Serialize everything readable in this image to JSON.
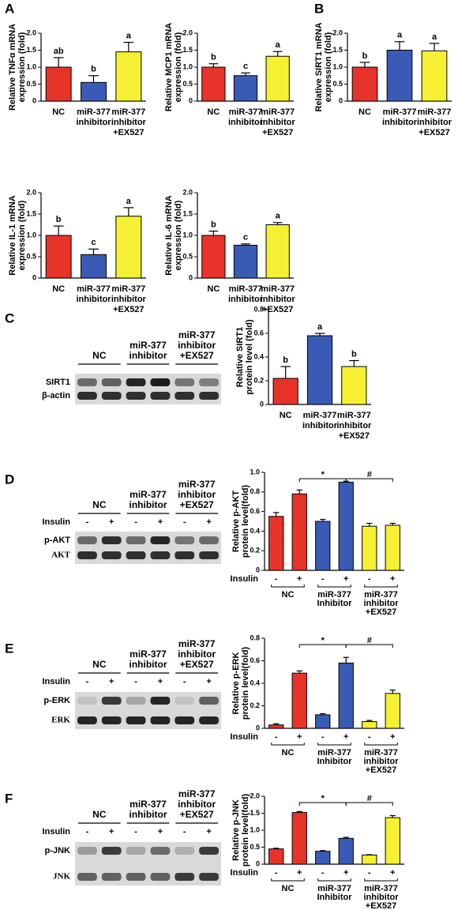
{
  "panel_labels": [
    "A",
    "B",
    "C",
    "D",
    "E",
    "F"
  ],
  "chart_data": [
    {
      "type": "bar",
      "ylabel": [
        "Relative TNFα mRNA",
        "expression (fold)"
      ],
      "categories": [
        [
          "NC"
        ],
        [
          "miR-377",
          "inhibitor"
        ],
        [
          "miR-377",
          "inhibitor",
          "+EX527"
        ]
      ],
      "values": [
        1.0,
        0.55,
        1.45
      ],
      "errors": [
        0.28,
        0.2,
        0.28
      ],
      "letters": [
        "ab",
        "b",
        "a"
      ],
      "colors": [
        "#e8332a",
        "#3a5bb5",
        "#f5f032"
      ],
      "ylim": [
        0,
        2
      ],
      "yticks": [
        0,
        0.5,
        {
          "value": 1,
          "label": "1.0"
        },
        1.5,
        {
          "value": 2,
          "label": "2.0"
        }
      ]
    },
    {
      "type": "bar",
      "ylabel": [
        "Relative MCP1 mRNA",
        "expression (fold)"
      ],
      "categories": [
        [
          "NC"
        ],
        [
          "miR-377",
          "inhibitor"
        ],
        [
          "miR-377",
          "inhibitor",
          "+EX527"
        ]
      ],
      "values": [
        1.0,
        0.75,
        1.32
      ],
      "errors": [
        0.1,
        0.08,
        0.14
      ],
      "letters": [
        "b",
        "c",
        "a"
      ],
      "colors": [
        "#e8332a",
        "#3a5bb5",
        "#f5f032"
      ],
      "ylim": [
        0,
        2
      ],
      "yticks": [
        0,
        0.5,
        {
          "value": 1,
          "label": "1.0"
        },
        1.5,
        {
          "value": 2,
          "label": "2.0"
        }
      ]
    },
    {
      "type": "bar",
      "ylabel": [
        "Relative SIRT1 mRNA",
        "expression (fold)"
      ],
      "categories": [
        [
          "NC"
        ],
        [
          "miR-377",
          "inhibitor"
        ],
        [
          "miR-377",
          "inhibitor",
          "+EX527"
        ]
      ],
      "values": [
        1.0,
        1.5,
        1.48
      ],
      "errors": [
        0.14,
        0.25,
        0.22
      ],
      "letters": [
        "b",
        "a",
        "a"
      ],
      "colors": [
        "#e8332a",
        "#3a5bb5",
        "#f5f032"
      ],
      "ylim": [
        0,
        2
      ],
      "yticks": [
        0,
        0.5,
        {
          "value": 1,
          "label": "1.0"
        },
        1.5,
        {
          "value": 2,
          "label": "2.0"
        }
      ]
    },
    {
      "type": "bar",
      "ylabel": [
        "Relative IL-1 mRNA",
        "expression (fold)"
      ],
      "categories": [
        [
          "NC"
        ],
        [
          "miR-377",
          "inhibitor"
        ],
        [
          "miR-377",
          "inhibitor",
          "+EX527"
        ]
      ],
      "values": [
        1.0,
        0.55,
        1.45
      ],
      "errors": [
        0.22,
        0.13,
        0.2
      ],
      "letters": [
        "b",
        "c",
        "a"
      ],
      "colors": [
        "#e8332a",
        "#3a5bb5",
        "#f5f032"
      ],
      "ylim": [
        0,
        2
      ],
      "yticks": [
        0,
        0.5,
        {
          "value": 1,
          "label": "1.0"
        },
        1.5,
        {
          "value": 2,
          "label": "2.0"
        }
      ]
    },
    {
      "type": "bar",
      "ylabel": [
        "Relative IL-6 mRNA",
        "expression (fold)"
      ],
      "categories": [
        [
          "NC"
        ],
        [
          "miR-377",
          "inhibitor"
        ],
        [
          "miR-377",
          "inhibitor",
          "+EX527"
        ]
      ],
      "values": [
        1.0,
        0.77,
        1.25
      ],
      "errors": [
        0.1,
        0.03,
        0.05
      ],
      "letters": [
        "b",
        "c",
        "a"
      ],
      "colors": [
        "#e8332a",
        "#3a5bb5",
        "#f5f032"
      ],
      "ylim": [
        0,
        2
      ],
      "yticks": [
        0,
        0.5,
        {
          "value": 1,
          "label": "1.0"
        },
        1.5,
        {
          "value": 2,
          "label": "2.0"
        }
      ]
    },
    {
      "type": "bar",
      "ylabel": [
        "Relative SIRT1",
        "protein level (fold)"
      ],
      "categories": [
        [
          "NC"
        ],
        [
          "miR-377",
          "inhibitor"
        ],
        [
          "miR-377",
          "inhibitor",
          "+EX527"
        ]
      ],
      "values": [
        0.22,
        0.58,
        0.32
      ],
      "errors": [
        0.1,
        0.02,
        0.05
      ],
      "letters": [
        "b",
        "a",
        "b"
      ],
      "colors": [
        "#e8332a",
        "#3a5bb5",
        "#f5f032"
      ],
      "ylim": [
        0,
        0.8
      ],
      "yticks": [
        0,
        0.2,
        0.4,
        0.6,
        0.8
      ]
    },
    {
      "type": "bar",
      "ylabel": [
        "Relative p-AKT",
        "protein level(fold)"
      ],
      "insulin_label": "Insulin",
      "categories": [
        "-",
        "+",
        "-",
        "+",
        "-",
        "+"
      ],
      "groups": [
        [
          "NC"
        ],
        [
          "miR-377",
          "Inhibitor"
        ],
        [
          "miR-377",
          "inhibitor",
          "+EX527"
        ]
      ],
      "values": [
        0.55,
        0.78,
        0.5,
        0.9,
        0.45,
        0.46
      ],
      "errors": [
        0.04,
        0.04,
        0.02,
        0.01,
        0.03,
        0.02
      ],
      "colors": [
        "#e8332a",
        "#e8332a",
        "#3a5bb5",
        "#3a5bb5",
        "#f5f032",
        "#f5f032"
      ],
      "annotations": [
        {
          "text": "*",
          "between": [
            1,
            3
          ]
        },
        {
          "text": "#",
          "between": [
            3,
            5
          ]
        }
      ],
      "ylim": [
        0,
        1
      ],
      "yticks": [
        0,
        0.2,
        0.4,
        0.6,
        0.8,
        {
          "value": 1,
          "label": "1.0"
        }
      ]
    },
    {
      "type": "bar",
      "ylabel": [
        "Relative p-ERK",
        "protein level(fold)"
      ],
      "insulin_label": "Insulin",
      "categories": [
        "-",
        "+",
        "-",
        "+",
        "-",
        "+"
      ],
      "groups": [
        [
          "NC"
        ],
        [
          "miR-377",
          "Inhibitor"
        ],
        [
          "miR-377",
          "inhibitor",
          "+EX527"
        ]
      ],
      "values": [
        0.03,
        0.49,
        0.12,
        0.58,
        0.06,
        0.31
      ],
      "errors": [
        0.01,
        0.02,
        0.01,
        0.05,
        0.01,
        0.03
      ],
      "colors": [
        "#e8332a",
        "#e8332a",
        "#3a5bb5",
        "#3a5bb5",
        "#f5f032",
        "#f5f032"
      ],
      "annotations": [
        {
          "text": "*",
          "between": [
            1,
            3
          ]
        },
        {
          "text": "#",
          "between": [
            3,
            5
          ]
        }
      ],
      "ylim": [
        0,
        0.8
      ],
      "yticks": [
        0,
        0.2,
        0.4,
        0.6,
        0.8
      ]
    },
    {
      "type": "bar",
      "ylabel": [
        "Relative p-JNK",
        "protein level(fold)"
      ],
      "insulin_label": "Insulin",
      "categories": [
        "-",
        "+",
        "-",
        "+",
        "-",
        "+"
      ],
      "groups": [
        [
          "NC"
        ],
        [
          "miR-377",
          "Inhibitor"
        ],
        [
          "miR-377",
          "inhibitor",
          "+EX527"
        ]
      ],
      "values": [
        0.45,
        1.52,
        0.38,
        0.76,
        0.27,
        1.37
      ],
      "errors": [
        0.02,
        0.03,
        0.02,
        0.03,
        0.01,
        0.06
      ],
      "colors": [
        "#e8332a",
        "#e8332a",
        "#3a5bb5",
        "#3a5bb5",
        "#f5f032",
        "#f5f032"
      ],
      "annotations": [
        {
          "text": "*",
          "between": [
            1,
            3
          ]
        },
        {
          "text": "#",
          "between": [
            3,
            5
          ]
        }
      ],
      "ylim": [
        0,
        2
      ],
      "yticks": [
        0,
        0.5,
        {
          "value": 1,
          "label": "1.0"
        },
        1.5,
        {
          "value": 2,
          "label": "2.0"
        }
      ]
    }
  ],
  "blots": [
    {
      "groups": [
        [
          "NC"
        ],
        [
          "miR-377",
          "inhibitor"
        ],
        [
          "miR-377",
          "inhibitor",
          "+EX527"
        ]
      ],
      "rows": [
        "SIRT1",
        "β-actin"
      ]
    },
    {
      "groups": [
        [
          "NC"
        ],
        [
          "miR-377",
          "inhibitor"
        ],
        [
          "miR-377",
          "inhibitor",
          "+EX527"
        ]
      ],
      "insulin_label": "Insulin",
      "insulin": [
        "-",
        "+",
        "-",
        "+",
        "-",
        "+"
      ],
      "rows": [
        "p-AKT",
        "AKT"
      ]
    },
    {
      "groups": [
        [
          "NC"
        ],
        [
          "miR-377",
          "inhibitor"
        ],
        [
          "miR-377",
          "inhibitor",
          "+EX527"
        ]
      ],
      "insulin_label": "Insulin",
      "insulin": [
        "-",
        "+",
        "-",
        "+",
        "-",
        "+"
      ],
      "rows": [
        "p-ERK",
        "ERK"
      ]
    },
    {
      "groups": [
        [
          "NC"
        ],
        [
          "miR-377",
          "inhibitor"
        ],
        [
          "miR-377",
          "inhibitor",
          "+EX527"
        ]
      ],
      "insulin_label": "Insulin",
      "insulin": [
        "-",
        "+",
        "-",
        "+",
        "-",
        "+"
      ],
      "rows": [
        "p-JNK",
        "JNK"
      ]
    }
  ]
}
